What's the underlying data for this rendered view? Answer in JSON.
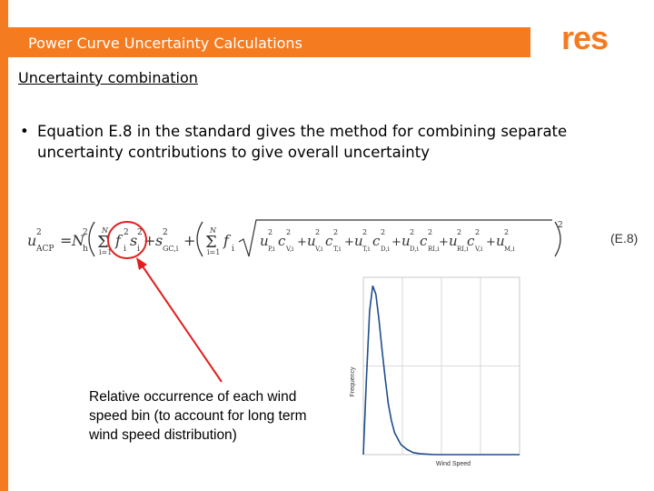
{
  "slide": {
    "title": "Power Curve Uncertainty Calculations",
    "logo_text": "res",
    "section_heading": "Uncertainty combination",
    "bullet": "Equation E.8 in the standard gives the method for combining separate uncertainty contributions to give overall uncertainty",
    "annotation": "Relative occurrence of each wind speed bin (to account for long term wind speed distribution)",
    "colors": {
      "accent": "#f47b20",
      "arrow": "#e02020"
    }
  },
  "equation": {
    "lhs": "u",
    "lhs_sup": "2",
    "lhs_sub": "ACP",
    "eq_sign": "=",
    "n_h": "N",
    "n_h_sub": "h",
    "n_h_sup": "2",
    "sum1": "Σ",
    "sum1_sub": "i=1",
    "sum1_sup": "N",
    "f_sq": "f",
    "f_sub": "i",
    "f_sup": "2",
    "s_term": "s",
    "s_sub": "i",
    "s_sup": "2",
    "plus": "+",
    "s_gc": "s",
    "s_gc_sup": "2",
    "s_gc_sub": "GC,i",
    "sum2": "Σ",
    "sum2_sub": "i=1",
    "sum2_sup": "N",
    "f2": "f",
    "f2_sub": "i",
    "sqrt_terms": [
      {
        "base": "u",
        "sup": "2",
        "sub": "P,i"
      },
      {
        "base": "c",
        "sup": "2",
        "sub": "V,i"
      },
      {
        "base": "u",
        "sup": "2",
        "sub": "V,i"
      },
      {
        "base": "c",
        "sup": "2",
        "sub": "T,i"
      },
      {
        "base": "u",
        "sup": "2",
        "sub": "T,i"
      },
      {
        "base": "c",
        "sup": "2",
        "sub": "D,i"
      },
      {
        "base": "u",
        "sup": "2",
        "sub": "D,i"
      },
      {
        "base": "c",
        "sup": "2",
        "sub": "RI,i"
      },
      {
        "base": "u",
        "sup": "2",
        "sub": "RI,i"
      },
      {
        "base": "c",
        "sup": "2",
        "sub": "V,i"
      },
      {
        "base": "u",
        "sup": "2",
        "sub": "M,i"
      }
    ],
    "outer_sup": "2",
    "number": "(E.8)"
  },
  "chart_data": {
    "type": "line",
    "xlabel": "Wind Speed",
    "ylabel": "Frequency",
    "grid": true,
    "x": [
      0,
      1,
      2,
      3,
      4,
      5,
      6,
      7,
      8,
      9,
      10,
      12,
      14,
      16,
      18,
      20,
      22,
      24,
      26,
      28,
      30,
      35,
      40,
      45,
      50
    ],
    "values": [
      0,
      0.45,
      0.85,
      1.0,
      0.95,
      0.8,
      0.62,
      0.45,
      0.3,
      0.2,
      0.13,
      0.06,
      0.03,
      0.012,
      0.006,
      0.003,
      0.001,
      0,
      0,
      0,
      0,
      0,
      0,
      0,
      0
    ],
    "xlim": [
      0,
      50
    ],
    "ylim": [
      0,
      1.05
    ]
  }
}
